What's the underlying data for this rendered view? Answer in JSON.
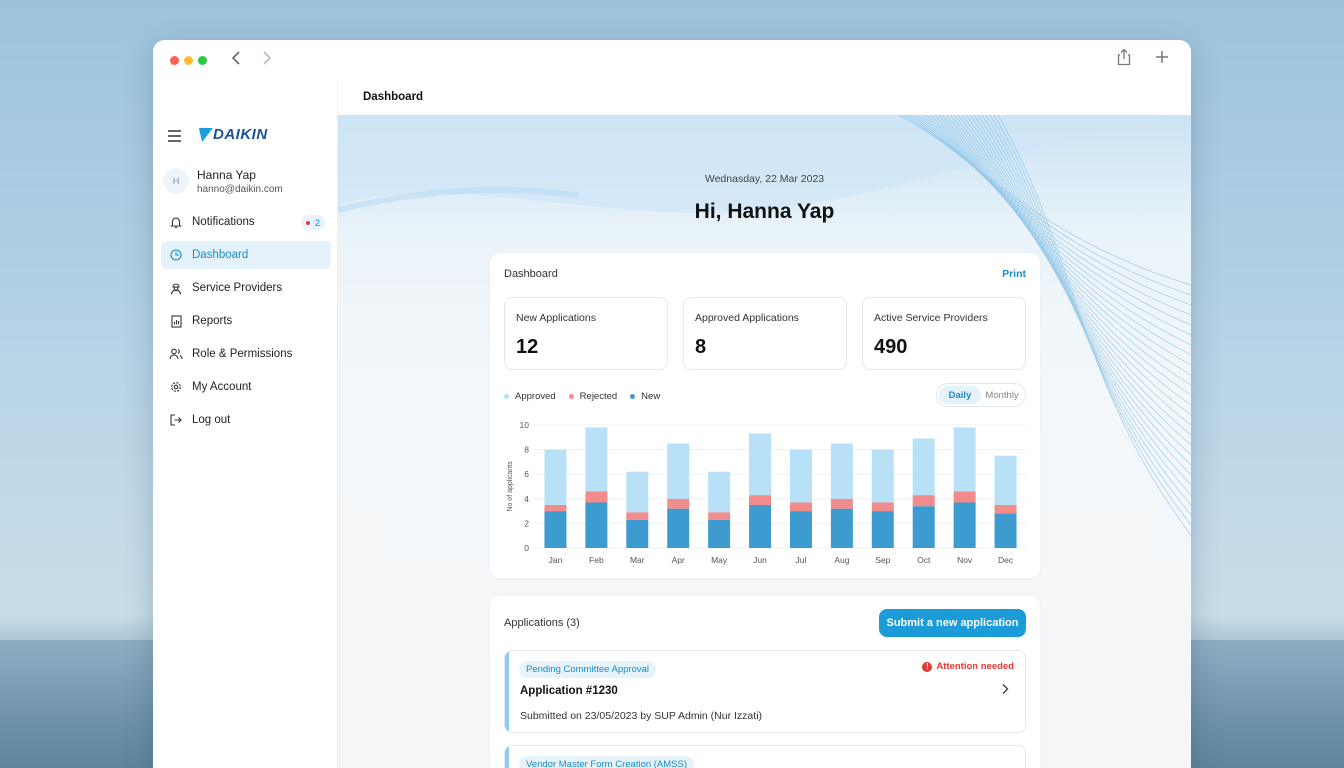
{
  "window": {
    "controls": [
      "close",
      "minimize",
      "maximize"
    ]
  },
  "brand": {
    "logo_text": "DAIKIN"
  },
  "user": {
    "initial": "H",
    "name": "Hanna Yap",
    "email": "hanno@daikin.com"
  },
  "sidebar": {
    "items": [
      {
        "label": "Notifications",
        "icon": "bell-icon",
        "badge": "2"
      },
      {
        "label": "Dashboard",
        "icon": "clock-icon",
        "active": true
      },
      {
        "label": "Service Providers",
        "icon": "worker-icon"
      },
      {
        "label": "Reports",
        "icon": "report-icon"
      },
      {
        "label": "Role & Permissions",
        "icon": "users-icon"
      },
      {
        "label": "My Account",
        "icon": "gear-icon"
      },
      {
        "label": "Log out",
        "icon": "logout-icon"
      }
    ]
  },
  "header": {
    "title": "Dashboard"
  },
  "main": {
    "date": "Wednasday, 22 Mar 2023",
    "greeting": "Hi, Hanna Yap"
  },
  "dashboard": {
    "title": "Dashboard",
    "print_label": "Print",
    "stats": [
      {
        "label": "New Applications",
        "value": "12"
      },
      {
        "label": "Approved Applications",
        "value": "8"
      },
      {
        "label": "Active Service Providers",
        "value": "490"
      }
    ],
    "toggle": {
      "daily": "Daily",
      "monthly": "Monthly",
      "selected": "Daily"
    }
  },
  "chart_data": {
    "type": "bar",
    "stacked": true,
    "categories": [
      "Jan",
      "Feb",
      "Mar",
      "Apr",
      "May",
      "Jun",
      "Jul",
      "Aug",
      "Sep",
      "Oct",
      "Nov",
      "Dec"
    ],
    "series": [
      {
        "name": "New",
        "color": "#3d9bcf",
        "values": [
          3.0,
          3.7,
          2.3,
          3.2,
          2.3,
          3.5,
          3.0,
          3.2,
          3.0,
          3.4,
          3.7,
          2.8
        ]
      },
      {
        "name": "Rejected",
        "color": "#f28b8b",
        "values": [
          0.5,
          0.9,
          0.6,
          0.8,
          0.6,
          0.8,
          0.7,
          0.8,
          0.7,
          0.9,
          0.9,
          0.7
        ]
      },
      {
        "name": "Approved",
        "color": "#b8e1f7",
        "values": [
          4.5,
          5.2,
          3.3,
          4.5,
          3.3,
          5.0,
          4.3,
          4.5,
          4.3,
          4.6,
          5.2,
          4.0
        ]
      }
    ],
    "legend_order": [
      "Approved",
      "Rejected",
      "New"
    ],
    "ylabel": "No of applicants",
    "ylim": [
      0,
      10
    ],
    "yticks": [
      0,
      2,
      4,
      6,
      8,
      10
    ],
    "grid": true,
    "legend_position": "top-left"
  },
  "applications": {
    "title": "Applications (3)",
    "submit_label": "Submit a new application",
    "items": [
      {
        "status": "Pending Committee Approval",
        "attention": "Attention needed",
        "name": "Application #1230",
        "submitted": "Submitted on 23/05/2023 by SUP Admin (Nur Izzati)"
      },
      {
        "status": "Vendor Master Form Creation (AMSS)"
      }
    ]
  }
}
